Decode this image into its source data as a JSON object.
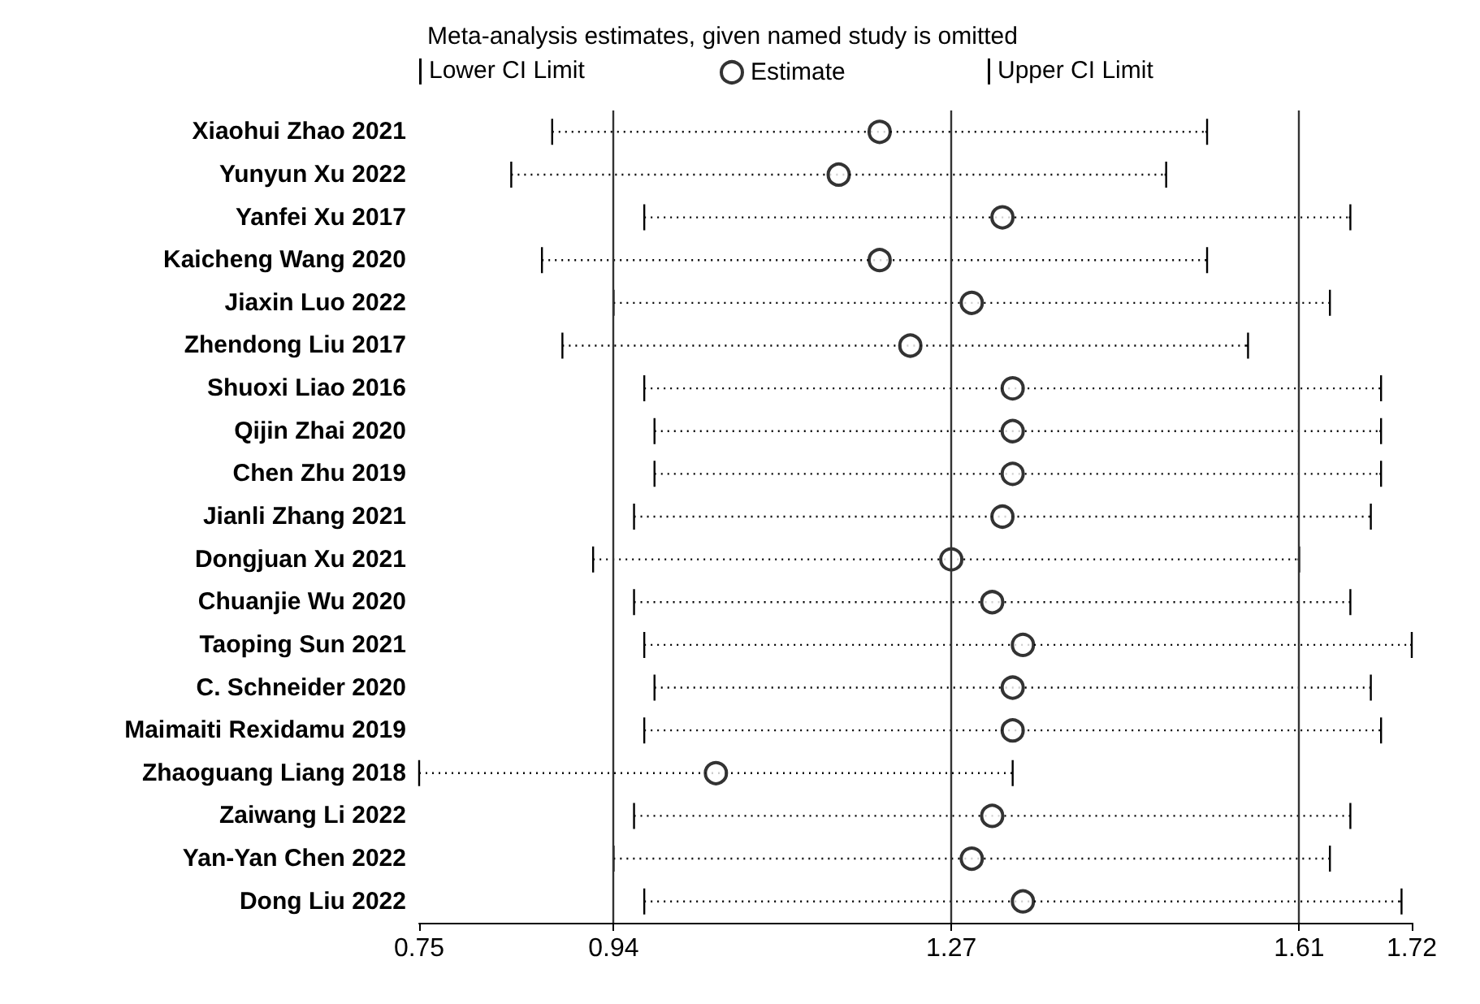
{
  "chart_data": {
    "type": "scatter",
    "orientation": "horizontal",
    "title": "Meta-analysis estimates, given named study is omitted",
    "categories": [
      "Xiaohui Zhao 2021",
      "Yunyun Xu 2022",
      "Yanfei Xu 2017",
      "Kaicheng Wang 2020",
      "Jiaxin Luo 2022",
      "Zhendong Liu 2017",
      "Shuoxi Liao 2016",
      "Qijin Zhai 2020",
      "Chen Zhu 2019",
      "Jianli Zhang 2021",
      "Dongjuan Xu 2021",
      "Chuanjie Wu 2020",
      "Taoping Sun 2021",
      "C. Schneider 2020",
      "Maimaiti Rexidamu 2019",
      "Zhaoguang Liang 2018",
      "Zaiwang Li 2022",
      "Yan-Yan Chen 2022",
      "Dong Liu 2022"
    ],
    "series": [
      {
        "name": "Estimate",
        "color": "#000000",
        "marker": "circle",
        "values": [
          1.2,
          1.16,
          1.32,
          1.2,
          1.29,
          1.23,
          1.33,
          1.33,
          1.33,
          1.32,
          1.27,
          1.31,
          1.34,
          1.33,
          1.33,
          1.04,
          1.31,
          1.29,
          1.34
        ],
        "errors": [
          [
            0.88,
            1.52
          ],
          [
            0.84,
            1.48
          ],
          [
            0.97,
            1.66
          ],
          [
            0.87,
            1.52
          ],
          [
            0.94,
            1.64
          ],
          [
            0.89,
            1.56
          ],
          [
            0.97,
            1.69
          ],
          [
            0.98,
            1.69
          ],
          [
            0.98,
            1.69
          ],
          [
            0.96,
            1.68
          ],
          [
            0.92,
            1.61
          ],
          [
            0.96,
            1.66
          ],
          [
            0.97,
            1.72
          ],
          [
            0.98,
            1.68
          ],
          [
            0.97,
            1.69
          ],
          [
            0.75,
            1.33
          ],
          [
            0.96,
            1.66
          ],
          [
            0.94,
            1.64
          ],
          [
            0.97,
            1.71
          ]
        ]
      }
    ],
    "annotations": [
      "Lower CI Limit",
      "Upper CI Limit"
    ],
    "line_style": "dotted",
    "xlim": [
      0.75,
      1.72
    ],
    "xticks": [
      0.75,
      0.94,
      1.27,
      1.61,
      1.72
    ],
    "ref_lines": [
      {
        "axis": "x",
        "value": 0.94,
        "color": "#333333"
      },
      {
        "axis": "x",
        "value": 1.27,
        "color": "#333333"
      },
      {
        "axis": "x",
        "value": 1.61,
        "color": "#333333"
      }
    ],
    "legend": "top"
  }
}
